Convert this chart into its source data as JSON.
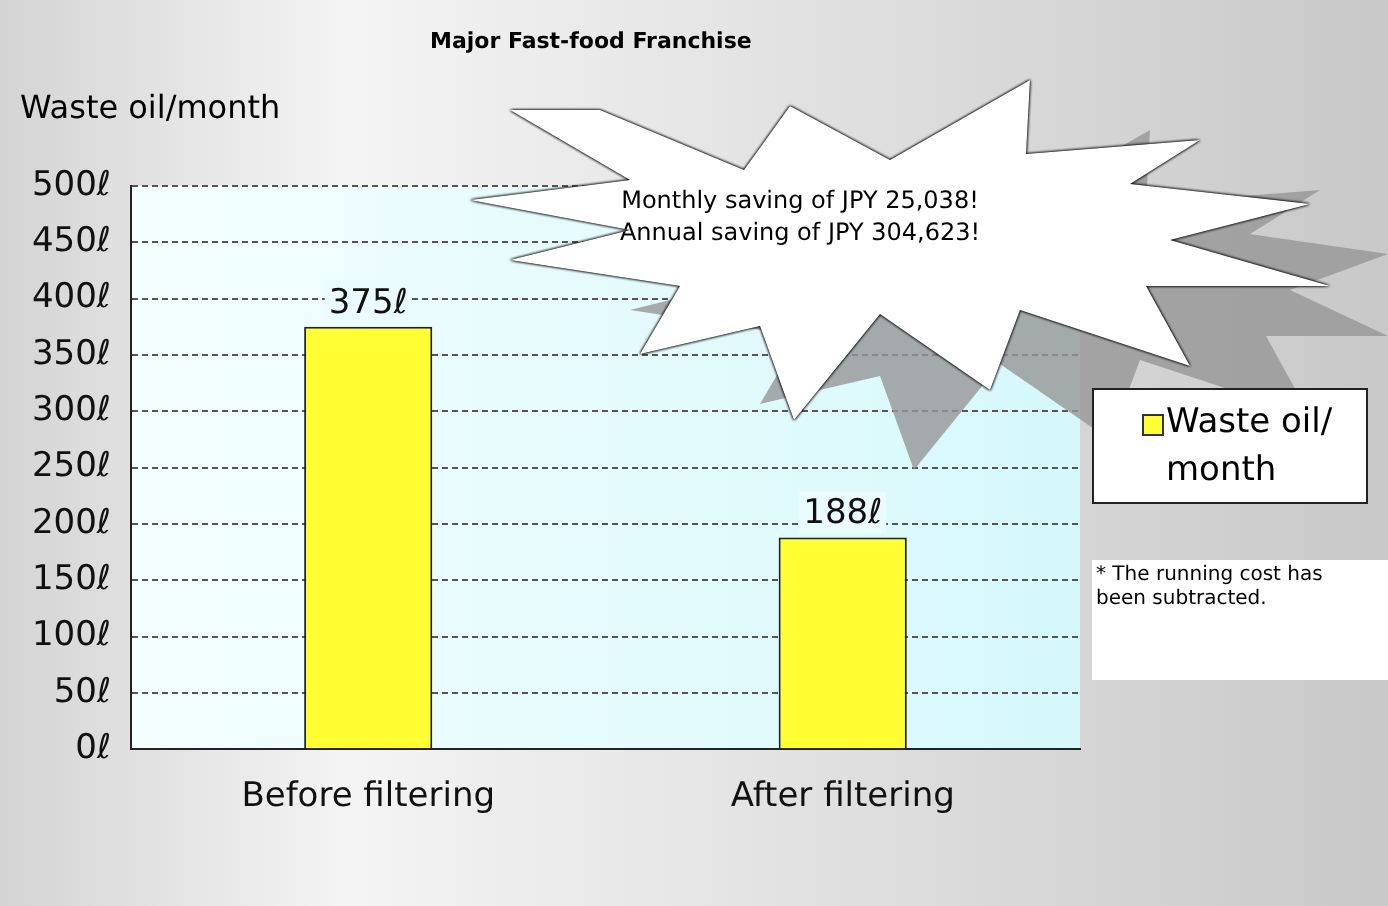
{
  "chart_data": {
    "type": "bar",
    "title": "Major Fast-food Franchise",
    "ylabel": "Waste oil/month",
    "categories": [
      "Before filtering",
      "After filtering"
    ],
    "series": [
      {
        "name": "Waste oil/\nmonth",
        "color": "#ffff33",
        "values": [
          375,
          188
        ],
        "value_labels": [
          "375ℓ",
          "188ℓ"
        ]
      }
    ],
    "ylim": [
      0,
      500
    ],
    "yticks": [
      {
        "value": 0,
        "label": "0ℓ"
      },
      {
        "value": 50,
        "label": "50ℓ"
      },
      {
        "value": 100,
        "label": "100ℓ"
      },
      {
        "value": 150,
        "label": "150ℓ"
      },
      {
        "value": 200,
        "label": "200ℓ"
      },
      {
        "value": 250,
        "label": "250ℓ"
      },
      {
        "value": 300,
        "label": "300ℓ"
      },
      {
        "value": 350,
        "label": "350ℓ"
      },
      {
        "value": 400,
        "label": "400ℓ"
      },
      {
        "value": 450,
        "label": "450ℓ"
      },
      {
        "value": 500,
        "label": "500ℓ"
      }
    ],
    "grid": "y",
    "legend": "right",
    "annotations": [
      "Monthly saving of JPY 25,038!",
      "Annual saving of JPY 304,623!",
      "* The running cost has\nbeen subtracted."
    ]
  }
}
